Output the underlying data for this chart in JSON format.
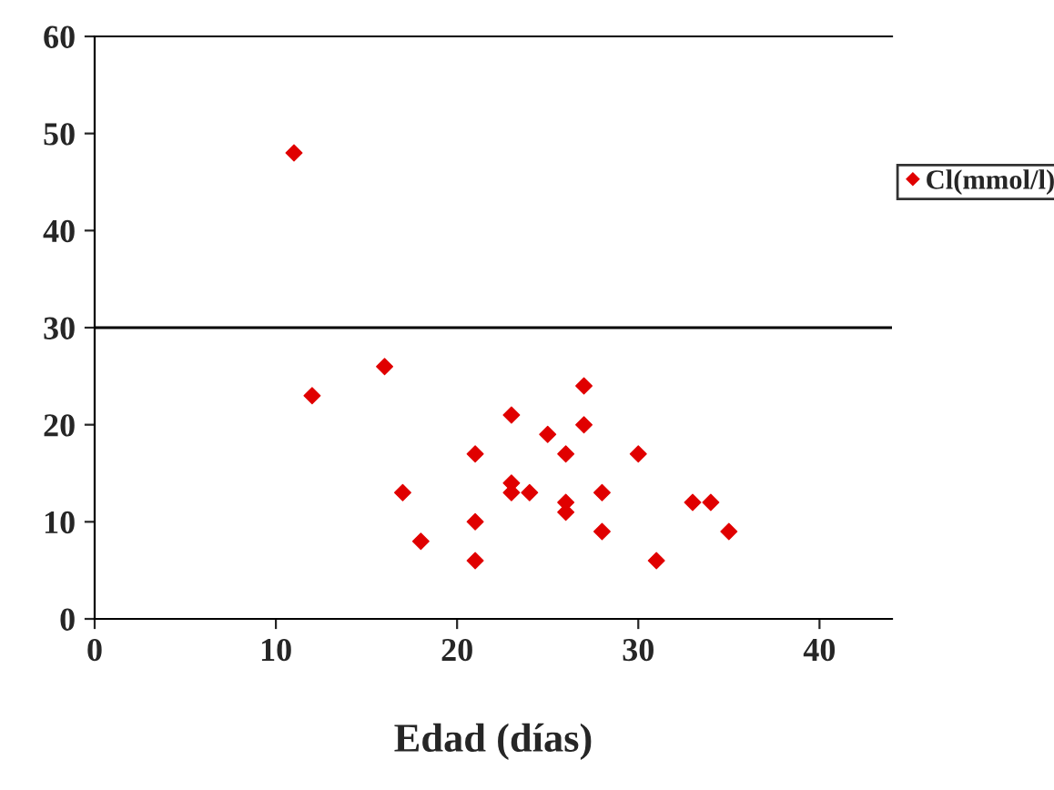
{
  "chart_data": {
    "type": "scatter",
    "xlabel": "Edad (días)",
    "x": [
      11,
      12,
      16,
      17,
      18,
      21,
      21,
      21,
      23,
      23,
      23,
      24,
      25,
      26,
      26,
      26,
      27,
      27,
      28,
      28,
      30,
      31,
      33,
      34,
      35
    ],
    "series": [
      {
        "name": "Cl(mmol/l)",
        "color": "#e00000",
        "values": [
          48,
          23,
          26,
          13,
          8,
          17,
          10,
          6,
          21,
          14,
          13,
          13,
          19,
          17,
          12,
          11,
          24,
          20,
          13,
          9,
          17,
          6,
          12,
          12,
          9
        ]
      }
    ],
    "marker": "diamond",
    "xlim": [
      0,
      44
    ],
    "xticks": [
      0,
      10,
      20,
      30,
      40
    ],
    "ylim": [
      0,
      60
    ],
    "yticks": [
      0,
      10,
      20,
      30,
      40,
      50,
      60
    ],
    "ref_lines": [
      {
        "axis": "y",
        "value": 30,
        "color": "#000000"
      }
    ],
    "grid": false,
    "legend": "right"
  }
}
